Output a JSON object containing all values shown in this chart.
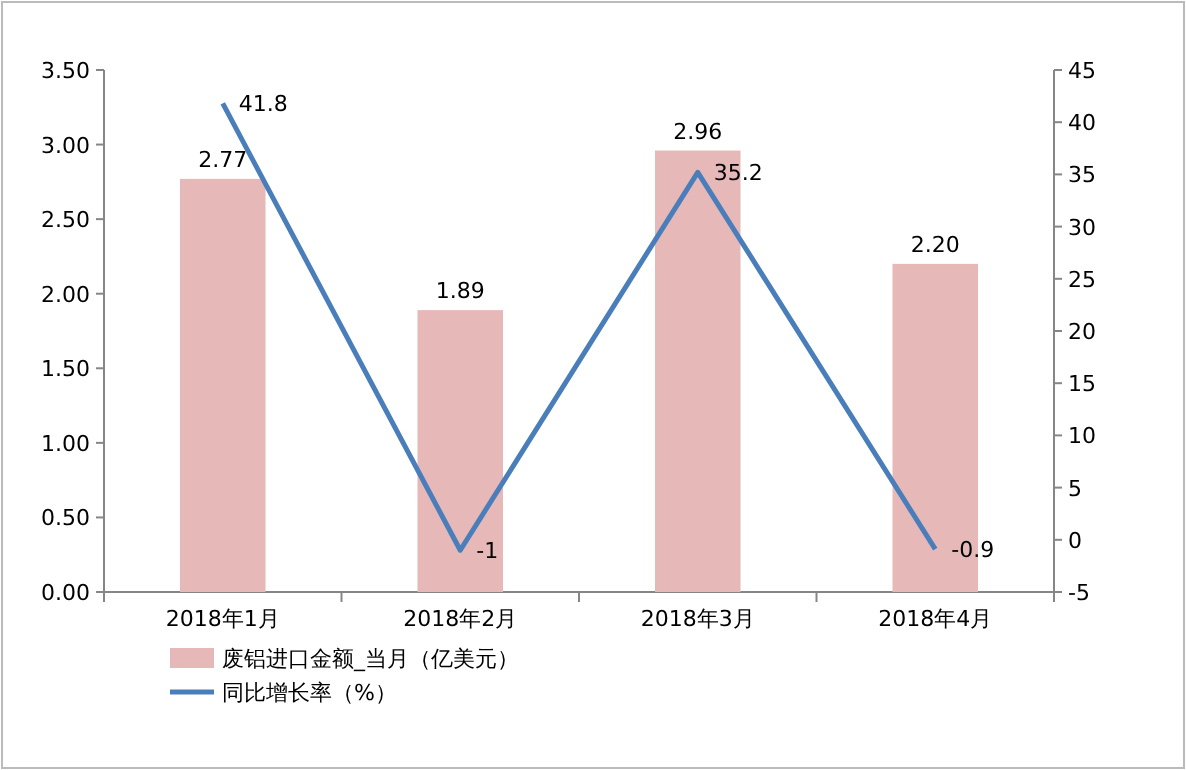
{
  "chart_data": {
    "type": "bar",
    "categories": [
      "2018年1月",
      "2018年2月",
      "2018年3月",
      "2018年4月"
    ],
    "series": [
      {
        "name": "废铝进口金额_当月（亿美元）",
        "color": "#e6b8b7",
        "values": [
          2.77,
          1.89,
          2.96,
          2.2
        ],
        "value_labels": [
          "2.77",
          "1.89",
          "2.96",
          "2.20"
        ]
      },
      {
        "name": "同比增长率（%）",
        "type": "line",
        "axis": "y2",
        "color": "#4a7ebb",
        "values": [
          41.8,
          -1,
          35.2,
          -0.9
        ],
        "value_labels": [
          "41.8",
          "-1",
          "35.2",
          "-0.9"
        ]
      }
    ],
    "ylim": [
      0,
      3.5
    ],
    "yticks": [
      {
        "value": 0,
        "label": "0.00"
      },
      {
        "value": 0.5,
        "label": "0.50"
      },
      {
        "value": 1,
        "label": "1.00"
      },
      {
        "value": 1.5,
        "label": "1.50"
      },
      {
        "value": 2,
        "label": "2.00"
      },
      {
        "value": 2.5,
        "label": "2.50"
      },
      {
        "value": 3,
        "label": "3.00"
      },
      {
        "value": 3.5,
        "label": "3.50"
      }
    ],
    "y2lim": [
      -5,
      45
    ],
    "y2ticks": [
      -5,
      0,
      5,
      10,
      15,
      20,
      25,
      30,
      35,
      40,
      45
    ],
    "legend": "bottom left",
    "grid": false,
    "marker": "none",
    "line_style": "solid"
  }
}
